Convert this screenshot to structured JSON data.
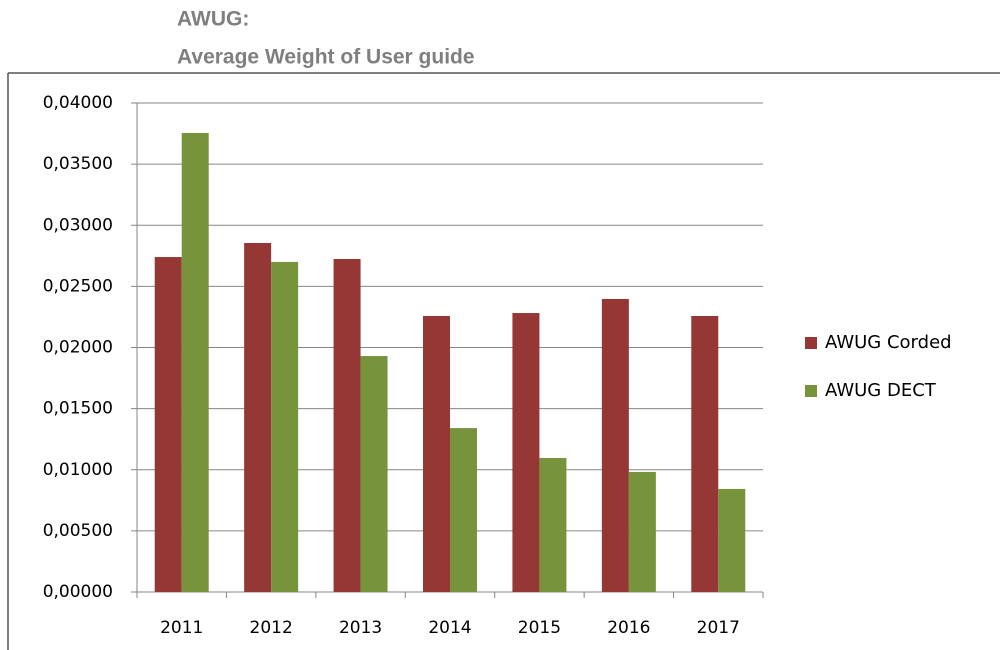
{
  "chart_data": {
    "type": "bar",
    "title": "AWUG:",
    "subtitle": "Average Weight of User guide",
    "categories": [
      "2011",
      "2012",
      "2013",
      "2014",
      "2015",
      "2016",
      "2017"
    ],
    "series": [
      {
        "name": "AWUG Corded",
        "color": "#953735",
        "values": [
          0.0274,
          0.02855,
          0.02724,
          0.02258,
          0.02282,
          0.02397,
          0.02258
        ]
      },
      {
        "name": "AWUG DECT",
        "color": "#77933c",
        "values": [
          0.03755,
          0.027,
          0.0193,
          0.01341,
          0.01096,
          0.00982,
          0.00843
        ]
      }
    ],
    "ylim": [
      0,
      0.04
    ],
    "yticks": [
      {
        "value": 0,
        "label": "0,00000"
      },
      {
        "value": 0.005,
        "label": "0,00500"
      },
      {
        "value": 0.01,
        "label": "0,01000"
      },
      {
        "value": 0.015,
        "label": "0,01500"
      },
      {
        "value": 0.02,
        "label": "0,02000"
      },
      {
        "value": 0.025,
        "label": "0,02500"
      },
      {
        "value": 0.03,
        "label": "0,03000"
      },
      {
        "value": 0.035,
        "label": "0,03500"
      },
      {
        "value": 0.04,
        "label": "0,04000"
      }
    ],
    "grid": true,
    "legend": "right"
  }
}
